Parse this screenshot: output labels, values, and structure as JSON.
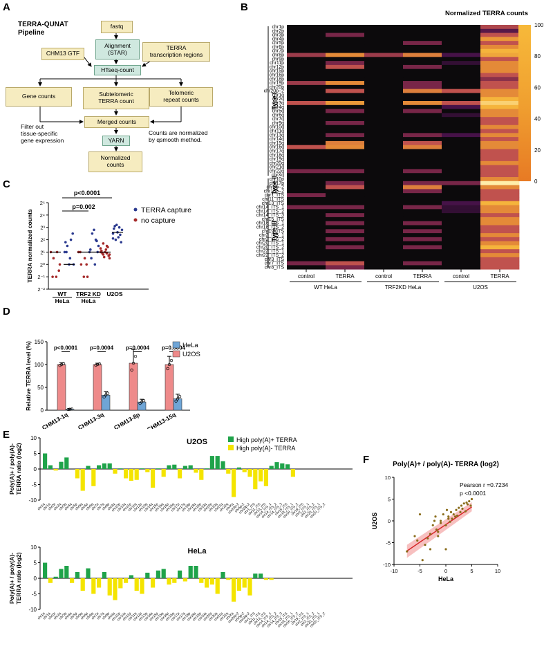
{
  "panel_labels": {
    "a": "A",
    "b": "B",
    "c": "C",
    "d": "D",
    "e": "E",
    "f": "F"
  },
  "pipeline": {
    "title": "TERRA-QUNAT\nPipeline",
    "fastq": "fastq",
    "alignment": "Alignment\n(STAR)",
    "gtf": "CHM13 GTF",
    "terra_regions": "TERRA\ntranscription regions",
    "htseq": "HTseq-count",
    "gene_counts": "Gene counts",
    "subtelomeric": "Subtelomeric\nTERRA count",
    "telomeric": "Telomeric\nrepeat counts",
    "filter_note": "Filter out\ntissue-specific\ngene expression",
    "merged": "Merged counts",
    "norm_note": "Counts are normalized\nby qsmooth method.",
    "yarn": "YARN",
    "normalized": "Normalized\ncounts"
  },
  "panel_b": {
    "title": "Normalized TERRA counts",
    "colorbar_ticks": [
      "100",
      "80",
      "60",
      "40",
      "20",
      "0"
    ],
    "group_types": [
      "Type I",
      "Type II",
      "Type III"
    ],
    "columns": [
      "control",
      "TERRA",
      "control",
      "TERRA",
      "control",
      "TERRA"
    ],
    "groups": [
      "WT HeLa",
      "TRF2KD HeLa",
      "U2OS"
    ],
    "rows": [
      "chr1p",
      "chr2p",
      "chr3p",
      "chr4p",
      "chr5p",
      "chr6p",
      "chr7p",
      "chr8p",
      "chr9p",
      "chr11p",
      "chr12p",
      "chr15p",
      "chr16p",
      "chr18p",
      "chr19p",
      "chr20p",
      "chr20p−2",
      "chr1q",
      "chr2q",
      "chr3q",
      "chr4q",
      "chr5q",
      "chr6q",
      "chr7q",
      "chr9q",
      "chr10q",
      "chr11q",
      "chr13q",
      "chr14q",
      "chr15q",
      "chr16q",
      "chr17q",
      "chr18q",
      "chr19q",
      "chr20q",
      "chr21q",
      "chr22q",
      "chrXq",
      "chr10p",
      "chr17p",
      "chr5p−2",
      "chr18p−2",
      "chr1_ITS",
      "chr11_ITS",
      "chr13_ITS",
      "chr14_ITS_1",
      "chr14_ITS_2",
      "chr14_ITS_3",
      "chr15_ITS",
      "chr18_ITS_1",
      "chr18_ITS_2",
      "chr19_ITS",
      "chr2_ITS_1",
      "chr2_ITS_2",
      "chr20_ITS_1",
      "chr20_ITS_2",
      "chr22_ITS_1",
      "chr22_ITS_2",
      "chr3_ITS",
      "chr7_ITS",
      "chr8_ITS"
    ]
  },
  "panel_c": {
    "ylabel": "TERRA normalized counts",
    "yticks": [
      "2⁵",
      "2⁴",
      "2³",
      "2²",
      "2¹",
      "2⁰",
      "2⁻¹",
      "2⁻²"
    ],
    "legend": [
      "TERRA capture",
      "no capture"
    ],
    "sig": [
      "p<0.0001",
      "p=0.002"
    ],
    "groups": [
      "WT\nHeLa",
      "TRF2 KD\nHeLa",
      "U2OS"
    ]
  },
  "panel_d": {
    "ylabel": "Relative TERRA level (%)",
    "yticks": [
      "150",
      "100",
      "50",
      "0"
    ],
    "legend": [
      "HeLa",
      "U2OS"
    ],
    "categories": [
      "CHM13-1q",
      "CHM13-3q",
      "CHM13-8p",
      "CHM13-15q"
    ],
    "pvals": [
      "p<0.0001",
      "p=0.0004",
      "p=0.0004",
      "p=0.0004"
    ]
  },
  "panel_e": {
    "ylabel": "Poly(A)+ / poly(A)-\nTERRA ratio (log2)",
    "legend": [
      "High poly(A)+ TERRA",
      "High poly(A)- TERRA"
    ],
    "titles": [
      "U2OS",
      "HeLa"
    ],
    "yticks": [
      "10",
      "5",
      "0",
      "-5",
      "-10"
    ]
  },
  "panel_f": {
    "title": "Poly(A)+ / poly(A)- TERRA (log2)",
    "pearson": "Pearson r =0.7234",
    "pval": "p <0.0001",
    "xlabel": "HeLa",
    "ylabel": "U2OS",
    "xticks": [
      "-10",
      "-5",
      "0",
      "5",
      "10"
    ],
    "yticks": [
      "10",
      "5",
      "0",
      "-5",
      "-10"
    ]
  },
  "chart_data": [
    {
      "type": "heatmap",
      "title": "Normalized TERRA counts",
      "columns": [
        "WT HeLa control",
        "WT HeLa TERRA",
        "TRF2KD HeLa control",
        "TRF2KD HeLa TERRA",
        "U2OS control",
        "U2OS TERRA"
      ],
      "zlim": [
        0,
        100
      ],
      "values": [
        [
          0,
          0,
          0,
          0,
          0,
          45
        ],
        [
          0,
          0,
          0,
          0,
          0,
          20
        ],
        [
          0,
          30,
          0,
          0,
          0,
          50
        ],
        [
          0,
          0,
          0,
          0,
          0,
          80
        ],
        [
          0,
          0,
          0,
          30,
          0,
          50
        ],
        [
          0,
          0,
          0,
          0,
          0,
          75
        ],
        [
          0,
          0,
          0,
          0,
          0,
          90
        ],
        [
          40,
          75,
          40,
          70,
          15,
          85
        ],
        [
          0,
          0,
          0,
          0,
          0,
          50
        ],
        [
          0,
          30,
          0,
          0,
          10,
          75
        ],
        [
          0,
          50,
          0,
          30,
          0,
          75
        ],
        [
          0,
          0,
          0,
          0,
          0,
          75
        ],
        [
          0,
          0,
          0,
          0,
          0,
          50
        ],
        [
          0,
          0,
          0,
          0,
          0,
          35
        ],
        [
          40,
          75,
          0,
          30,
          0,
          50
        ],
        [
          0,
          0,
          0,
          30,
          0,
          50
        ],
        [
          0,
          50,
          0,
          70,
          50,
          75
        ],
        [
          0,
          0,
          0,
          0,
          0,
          75
        ],
        [
          0,
          0,
          0,
          0,
          0,
          90
        ],
        [
          50,
          80,
          0,
          75,
          50,
          95
        ],
        [
          0,
          0,
          0,
          0,
          15,
          90
        ],
        [
          0,
          30,
          0,
          30,
          0,
          75
        ],
        [
          0,
          0,
          0,
          0,
          10,
          75
        ],
        [
          0,
          0,
          0,
          0,
          0,
          50
        ],
        [
          0,
          30,
          0,
          0,
          0,
          50
        ],
        [
          0,
          0,
          0,
          0,
          0,
          75
        ],
        [
          0,
          0,
          0,
          0,
          0,
          50
        ],
        [
          0,
          30,
          0,
          30,
          15,
          75
        ],
        [
          0,
          0,
          0,
          0,
          0,
          50
        ],
        [
          0,
          70,
          0,
          50,
          0,
          75
        ],
        [
          50,
          75,
          0,
          70,
          0,
          75
        ],
        [
          0,
          0,
          0,
          0,
          0,
          50
        ],
        [
          0,
          0,
          0,
          0,
          0,
          50
        ],
        [
          0,
          0,
          0,
          0,
          0,
          50
        ],
        [
          0,
          0,
          0,
          0,
          0,
          75
        ],
        [
          0,
          0,
          0,
          0,
          0,
          50
        ],
        [
          30,
          30,
          0,
          30,
          0,
          50
        ],
        [
          0,
          0,
          0,
          0,
          0,
          50
        ],
        [
          0,
          0,
          0,
          0,
          0,
          75
        ],
        [
          0,
          30,
          0,
          30,
          30,
          100
        ],
        [
          0,
          50,
          0,
          70,
          0,
          75
        ],
        [
          0,
          0,
          0,
          30,
          0,
          50
        ],
        [
          30,
          0,
          0,
          0,
          0,
          50
        ],
        [
          0,
          0,
          0,
          0,
          0,
          50
        ],
        [
          0,
          0,
          0,
          0,
          15,
          90
        ],
        [
          30,
          30,
          0,
          30,
          10,
          75
        ],
        [
          0,
          0,
          0,
          0,
          10,
          75
        ],
        [
          0,
          30,
          0,
          0,
          0,
          50
        ],
        [
          0,
          0,
          0,
          0,
          0,
          75
        ],
        [
          0,
          30,
          0,
          30,
          0,
          75
        ],
        [
          0,
          0,
          0,
          0,
          0,
          50
        ],
        [
          0,
          30,
          0,
          30,
          0,
          50
        ],
        [
          0,
          0,
          0,
          0,
          0,
          75
        ],
        [
          0,
          30,
          0,
          30,
          0,
          50
        ],
        [
          0,
          0,
          0,
          0,
          0,
          75
        ],
        [
          0,
          30,
          0,
          30,
          0,
          90
        ],
        [
          0,
          0,
          0,
          0,
          0,
          50
        ],
        [
          0,
          0,
          0,
          0,
          0,
          75
        ],
        [
          0,
          0,
          0,
          0,
          0,
          50
        ],
        [
          30,
          50,
          0,
          30,
          0,
          50
        ],
        [
          0,
          30,
          0,
          0,
          0,
          50
        ]
      ]
    },
    {
      "type": "scatter",
      "subtype": "dot plot",
      "ylabel": "TERRA normalized counts",
      "categories": [
        "WT HeLa",
        "TRF2 KD HeLa",
        "U2OS"
      ],
      "series": [
        {
          "name": "no capture",
          "values": [
            [
              1,
              1,
              0.5,
              0,
              -1,
              -1,
              -0.5
            ],
            [
              1,
              0.5,
              0,
              -1,
              -1,
              1,
              0
            ],
            [
              1,
              1.5,
              0.8,
              0.5,
              1.2,
              0.9,
              0.7,
              1,
              1.1,
              1.4,
              0.6,
              1.3,
              0.9,
              1.7,
              0.8
            ]
          ]
        },
        {
          "name": "TERRA capture",
          "values": [
            [
              1,
              2,
              1.5,
              0,
              0.5,
              1,
              2.5,
              0,
              1.8
            ],
            [
              1,
              2,
              2.5,
              1.5,
              0,
              0.5,
              1,
              2.8,
              1.2,
              1.9
            ],
            [
              2.5,
              3,
              2,
              2.8,
              2.2,
              3.1,
              1.8,
              2.6,
              2.9,
              2.4,
              3.2,
              2.1
            ]
          ]
        }
      ],
      "annotations": [
        "p<0.0001",
        "p=0.002"
      ]
    },
    {
      "type": "bar",
      "ylabel": "Relative TERRA level (%)",
      "categories": [
        "CHM13-1q",
        "CHM13-3q",
        "CHM13-8p",
        "CHM13-15q"
      ],
      "series": [
        {
          "name": "U2OS",
          "values": [
            100,
            100,
            103,
            100
          ]
        },
        {
          "name": "HeLa",
          "values": [
            2,
            33,
            18,
            25
          ]
        }
      ],
      "ylim": [
        0,
        150
      ],
      "annotations": [
        "p<0.0001",
        "p=0.0004",
        "p=0.0004",
        "p=0.0004"
      ]
    },
    {
      "type": "bar",
      "title": "U2OS",
      "ylabel": "Poly(A)+ / poly(A)- TERRA ratio (log2)",
      "ylim": [
        -10,
        10
      ],
      "categories": [
        "chr1q",
        "chr1q",
        "chr2p",
        "chr2q",
        "chr3q",
        "chr4q",
        "chr5p",
        "chr5q",
        "chr6p",
        "chr6q",
        "chr7p",
        "chr7q",
        "chr8p",
        "chr9q",
        "chr10p",
        "chr10q",
        "chr11p",
        "chr11q",
        "chr12p",
        "chr13q",
        "chr14q",
        "chr15p",
        "chr15q",
        "chr16p",
        "chr16q",
        "chr17p",
        "chr17q",
        "chr18p",
        "chr18q",
        "chr19p",
        "chr19q",
        "chr20p",
        "chr20q",
        "chr21q",
        "chr22q",
        "chrXq",
        "chr20p-2",
        "chr5p-2",
        "chr18p-2",
        "chr1_ITS",
        "chr11_ITS",
        "chr13_ITS",
        "chr14_ITS_1",
        "chr14_ITS_2",
        "chr14_ITS_3",
        "chr15_ITS",
        "chr18_ITS_1",
        "chr18_ITS_2",
        "chr19_ITS",
        "chr2_ITS_1",
        "chr2_ITS_2",
        "chr20_ITS_1",
        "chr20_ITS_2"
      ],
      "values": [
        5,
        1.2,
        -0.5,
        2.3,
        3.7,
        0,
        -3,
        -7,
        1,
        -5.5,
        1.2,
        1.8,
        1.8,
        -1.5,
        0.2,
        -3,
        -3.8,
        -3.5,
        0.2,
        -1,
        -6,
        0.2,
        -2.5,
        1.2,
        1.4,
        -3,
        1,
        1.2,
        -1.2,
        -3.5,
        0.2,
        4.2,
        4.2,
        2.5,
        -1.5,
        -9,
        0.5,
        -1,
        -2.5,
        -6.5,
        -4,
        -5.5,
        1,
        2.2,
        1.8,
        1.5,
        -2.5,
        0,
        0,
        0,
        0,
        0,
        0
      ]
    },
    {
      "type": "bar",
      "title": "HeLa",
      "ylabel": "Poly(A)+ / poly(A)- TERRA ratio (log2)",
      "ylim": [
        -10,
        10
      ],
      "values": [
        5,
        -1.5,
        0.5,
        3,
        4,
        -1.5,
        2,
        -4,
        3.2,
        -5,
        -3,
        2,
        -5.5,
        -7,
        -3.2,
        -1.5,
        1,
        -4,
        -5,
        1.8,
        -3,
        2.5,
        3,
        -2,
        -1.5,
        2.5,
        -1,
        4,
        4,
        -1.5,
        -3,
        -2,
        -5,
        2,
        -0.5,
        -7.5,
        -4,
        -3,
        -5.5,
        1.5,
        1.5,
        -0.5,
        -0.5,
        0,
        0,
        0,
        0,
        0,
        0,
        0,
        0,
        0,
        0
      ]
    },
    {
      "type": "scatter",
      "title": "Poly(A)+ / poly(A)- TERRA (log2)",
      "xlabel": "HeLa",
      "ylabel": "U2OS",
      "xlim": [
        -10,
        10
      ],
      "ylim": [
        -10,
        10
      ],
      "annotations": [
        "Pearson r =0.7234",
        "p <0.0001"
      ],
      "x": [
        -7.5,
        -6,
        -5,
        -4.5,
        -4,
        -3.5,
        -3,
        -2.5,
        -2,
        -1.8,
        -1.5,
        -1,
        -0.5,
        0,
        0.2,
        0.5,
        1,
        1.5,
        2,
        2.5,
        3,
        3.5,
        4,
        4.2,
        4.5,
        5,
        -5.5,
        -3,
        -1.5,
        0.5,
        1.8,
        2.8,
        3.8,
        -2.2,
        0,
        1.2,
        2.2,
        3.2,
        4.8,
        -1,
        0.8
      ],
      "y": [
        -7,
        -3.5,
        1.5,
        -9,
        -5.5,
        -4,
        -3,
        -1,
        1,
        -2,
        -3.5,
        0,
        1.5,
        -1,
        2.5,
        1,
        2,
        1.5,
        2.5,
        3,
        3.5,
        4,
        4.2,
        3.8,
        4.5,
        5,
        -4.5,
        -6.5,
        -2.5,
        0.5,
        1,
        2,
        2.2,
        0,
        -6.5,
        0.5,
        1.2,
        2.8,
        3.5,
        -0.5,
        -0.2
      ]
    }
  ]
}
